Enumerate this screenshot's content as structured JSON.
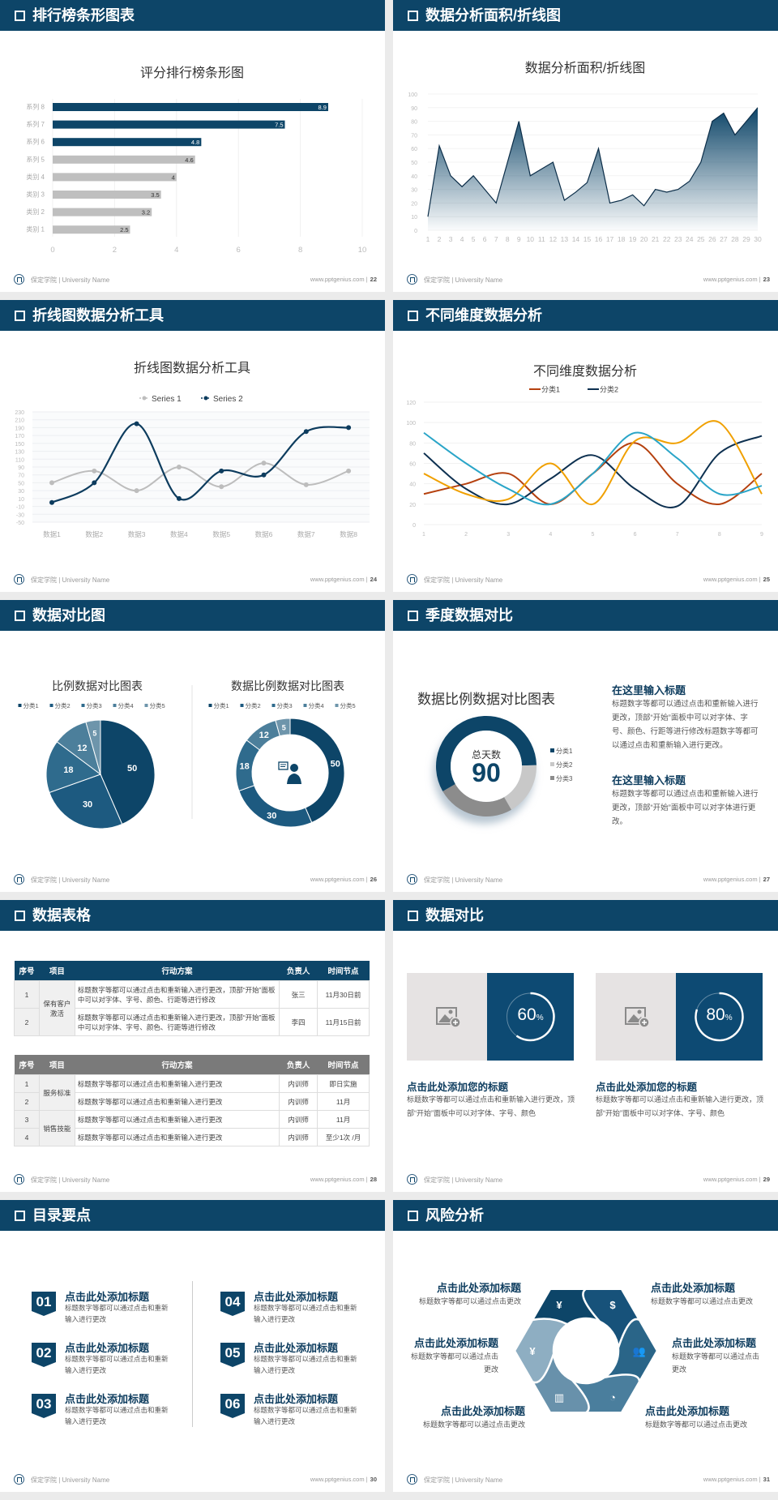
{
  "footer": {
    "school": "保定学院 | University Name",
    "site": "www.pptgenius.com",
    "sep": "|"
  },
  "slides": [
    {
      "title": "排行榜条形图表",
      "page": "22"
    },
    {
      "title": "数据分析面积/折线图",
      "page": "23"
    },
    {
      "title": "折线图数据分析工具",
      "page": "24"
    },
    {
      "title": "不同维度数据分析",
      "page": "25"
    },
    {
      "title": "数据对比图",
      "page": "26"
    },
    {
      "title": "季度数据对比",
      "page": "27"
    },
    {
      "title": "数据表格",
      "page": "28"
    },
    {
      "title": "数据对比",
      "page": "29"
    },
    {
      "title": "目录要点",
      "page": "30"
    },
    {
      "title": "风险分析",
      "page": "31"
    }
  ],
  "chart_data": [
    {
      "type": "bar",
      "orientation": "horizontal",
      "title": "评分排行榜条形图",
      "categories": [
        "系列 8",
        "系列 7",
        "系列 6",
        "系列 5",
        "类别 4",
        "类别 3",
        "类别 2",
        "类别 1"
      ],
      "values": [
        8.9,
        7.5,
        4.8,
        4.6,
        4,
        3.5,
        3.2,
        2.5
      ],
      "colors": [
        "#0d4568",
        "#0d4568",
        "#0d4568",
        "#bfbfbf",
        "#bfbfbf",
        "#bfbfbf",
        "#bfbfbf",
        "#bfbfbf"
      ],
      "xlim": [
        0,
        10
      ],
      "xticks": [
        0,
        2,
        4,
        6,
        8,
        10
      ],
      "grid": true
    },
    {
      "type": "area",
      "title": "数据分析面积/折线图",
      "x": [
        1,
        2,
        3,
        4,
        5,
        6,
        7,
        8,
        9,
        10,
        11,
        12,
        13,
        14,
        15,
        16,
        17,
        18,
        19,
        20,
        21,
        22,
        23,
        24,
        25,
        26,
        27,
        28,
        29,
        30
      ],
      "values": [
        10,
        62,
        40,
        32,
        40,
        30,
        20,
        50,
        80,
        40,
        45,
        50,
        22,
        28,
        35,
        60,
        20,
        22,
        26,
        18,
        30,
        28,
        30,
        36,
        50,
        80,
        86,
        70,
        80,
        90
      ],
      "ylim": [
        0,
        100
      ],
      "yticks": [
        0,
        10,
        20,
        30,
        40,
        50,
        60,
        70,
        80,
        90,
        100
      ],
      "color": "#0d4568",
      "grid": true
    },
    {
      "type": "line",
      "smooth": true,
      "title": "折线图数据分析工具",
      "legend": "top",
      "categories": [
        "数据1",
        "数据2",
        "数据3",
        "数据4",
        "数据5",
        "数据6",
        "数据7",
        "数据8"
      ],
      "series": [
        {
          "name": "Series 1",
          "color": "#bdbdbd",
          "values": [
            50,
            80,
            30,
            90,
            40,
            100,
            45,
            80
          ]
        },
        {
          "name": "Series 2",
          "color": "#0d3c5e",
          "values": [
            0,
            50,
            200,
            10,
            80,
            70,
            180,
            190
          ]
        }
      ],
      "ylim": [
        -50,
        230
      ],
      "yticks": [
        -50,
        -30,
        -10,
        10,
        30,
        50,
        70,
        90,
        110,
        130,
        150,
        170,
        190,
        210,
        230
      ],
      "grid": true
    },
    {
      "type": "line",
      "smooth": true,
      "title": "不同维度数据分析",
      "legend": "top",
      "x": [
        1,
        2,
        3,
        4,
        5,
        6,
        7,
        8,
        9
      ],
      "series": [
        {
          "name": "分类1",
          "color": "#b5410f",
          "values": [
            30,
            40,
            50,
            20,
            50,
            80,
            40,
            20,
            50
          ]
        },
        {
          "name": "分类2",
          "color": "#0d3050",
          "values": [
            70,
            35,
            20,
            45,
            68,
            35,
            18,
            70,
            87
          ]
        },
        {
          "color": "#f0a000",
          "values": [
            50,
            30,
            25,
            60,
            20,
            82,
            80,
            100,
            30
          ]
        },
        {
          "color": "#2aa5c8",
          "values": [
            90,
            60,
            35,
            20,
            50,
            90,
            65,
            30,
            38
          ]
        }
      ],
      "ylim": [
        0,
        120
      ],
      "yticks": [
        0,
        20,
        40,
        60,
        80,
        100,
        120
      ],
      "grid": true
    },
    {
      "type": "pie",
      "title": "比例数据对比图表",
      "legend": "top",
      "categories": [
        "分类1",
        "分类2",
        "分类3",
        "分类4",
        "分类5"
      ],
      "values": [
        50,
        30,
        18,
        12,
        5
      ],
      "colors": [
        "#0d4568",
        "#1d5a80",
        "#2f6b8d",
        "#4c7f9b",
        "#6e95ab"
      ]
    },
    {
      "type": "donut",
      "title": "数据比例数据对比图表",
      "legend": "top",
      "categories": [
        "分类1",
        "分类2",
        "分类3",
        "分类4",
        "分类5"
      ],
      "values": [
        50,
        30,
        18,
        12,
        5
      ],
      "colors": [
        "#0d4568",
        "#1d5a80",
        "#2f6b8d",
        "#4c7f9b",
        "#6e95ab"
      ],
      "center_icon": "presenter-icon"
    },
    {
      "type": "donut",
      "title": "数据比例数据对比图表",
      "legend": "right",
      "categories": [
        "分类1",
        "分类2",
        "分类3"
      ],
      "values": [
        58,
        17,
        25
      ],
      "colors": [
        "#0d4568",
        "#c8c8c8",
        "#8c8c8c"
      ],
      "center_label": "总天数",
      "center_value": "90"
    }
  ],
  "season": {
    "blocks": [
      {
        "heading": "在这里输入标题",
        "body": "标题数字等都可以通过点击和重新输入进行更改，顶部“开始”面板中可以对字体、字号、颜色、行距等进行修改标题数字等都可以通过点击和重新输入进行更改。"
      },
      {
        "heading": "在这里输入标题",
        "body": "标题数字等都可以通过点击和重新输入进行更改，顶部“开始”面板中可以对字体进行更改。"
      }
    ]
  },
  "table1": {
    "headers": [
      "序号",
      "项目",
      "行动方案",
      "负责人",
      "时间节点"
    ],
    "group": "保有客户激活",
    "rows": [
      {
        "no": "1",
        "plan": "标题数字等都可以通过点击和重新输入进行更改，顶部“开始”面板中可以对字体、字号、颜色、行距等进行修改",
        "owner": "张三",
        "time": "11月30日前"
      },
      {
        "no": "2",
        "plan": "标题数字等都可以通过点击和重新输入进行更改，顶部“开始”面板中可以对字体、字号、颜色、行距等进行修改",
        "owner": "李四",
        "time": "11月15日前"
      }
    ]
  },
  "table2": {
    "headers": [
      "序号",
      "项目",
      "行动方案",
      "负责人",
      "时间节点"
    ],
    "groups": [
      "服务标准",
      "销售技能"
    ],
    "rows": [
      {
        "no": "1",
        "plan": "标题数字等都可以通过点击和重新输入进行更改",
        "owner": "内训师",
        "time": "即日实施"
      },
      {
        "no": "2",
        "plan": "标题数字等都可以通过点击和重新输入进行更改",
        "owner": "内训师",
        "time": "11月"
      },
      {
        "no": "3",
        "plan": "标题数字等都可以通过点击和重新输入进行更改",
        "owner": "内训师",
        "time": "11月"
      },
      {
        "no": "4",
        "plan": "标题数字等都可以通过点击和重新输入进行更改",
        "owner": "内训师",
        "time": "至少1次 /月"
      }
    ]
  },
  "compare": {
    "cards": [
      {
        "percent": 60,
        "percent_text": "60",
        "unit": "%",
        "title": "点击此处添加您的标题",
        "body": "标题数字等都可以通过点击和重新输入进行更改，顶部“开始”面板中可以对字体、字号、颜色",
        "icon": "image-add-icon"
      },
      {
        "percent": 80,
        "percent_text": "80",
        "unit": "%",
        "title": "点击此处添加您的标题",
        "body": "标题数字等都可以通过点击和重新输入进行更改，顶部“开始”面板中可以对字体、字号、颜色",
        "icon": "image-add-icon"
      }
    ]
  },
  "toc": {
    "items": [
      {
        "num": "01",
        "title": "点击此处添加标题",
        "body": "标题数字等都可以通过点击和重新输入进行更改"
      },
      {
        "num": "02",
        "title": "点击此处添加标题",
        "body": "标题数字等都可以通过点击和重新输入进行更改"
      },
      {
        "num": "03",
        "title": "点击此处添加标题",
        "body": "标题数字等都可以通过点击和重新输入进行更改"
      },
      {
        "num": "04",
        "title": "点击此处添加标题",
        "body": "标题数字等都可以通过点击和重新输入进行更改"
      },
      {
        "num": "05",
        "title": "点击此处添加标题",
        "body": "标题数字等都可以通过点击和重新输入进行更改"
      },
      {
        "num": "06",
        "title": "点击此处添加标题",
        "body": "标题数字等都可以通过点击和重新输入进行更改"
      }
    ]
  },
  "risk": {
    "items": [
      {
        "title": "点击此处添加标题",
        "body": "标题数字等都可以通过点击更改"
      },
      {
        "title": "点击此处添加标题",
        "body": "标题数字等都可以通过点击更改"
      },
      {
        "title": "点击此处添加标题",
        "body": "标题数字等都可以通过点击更改"
      },
      {
        "title": "点击此处添加标题",
        "body": "标题数字等都可以通过点击更改"
      },
      {
        "title": "点击此处添加标题",
        "body": "标题数字等都可以通过点击更改"
      },
      {
        "title": "点击此处添加标题",
        "body": "标题数字等都可以通过点击更改"
      }
    ],
    "icons": [
      "money-bag-icon",
      "coins-icon",
      "people-icon",
      "pie-chart-icon",
      "building-icon",
      "hand-money-icon"
    ],
    "colors": [
      "#0d4568",
      "#17527a",
      "#2a6588",
      "#4a7e9d",
      "#6891ab",
      "#8eaec2"
    ]
  }
}
